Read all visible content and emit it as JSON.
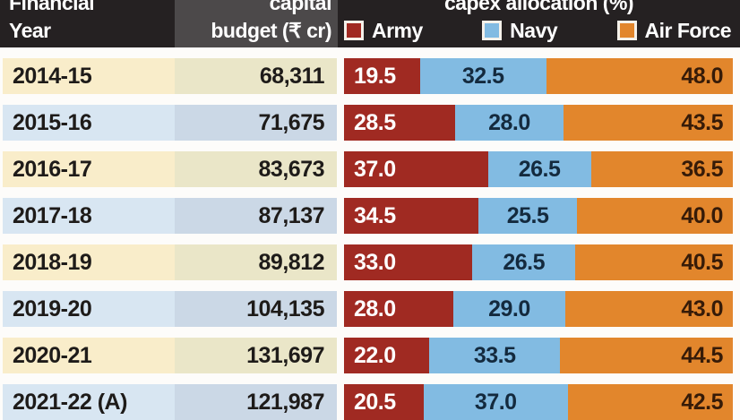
{
  "header": {
    "col_year": {
      "line1": "Financial",
      "line2": "Year"
    },
    "col_budget": {
      "line1": "capital",
      "line2": "budget (₹ cr)"
    },
    "col_capex": {
      "title": "capex allocation (%)"
    },
    "legend": [
      {
        "label": "Army",
        "color": "#a02a22"
      },
      {
        "label": "Navy",
        "color": "#82bbe2"
      },
      {
        "label": "Air Force",
        "color": "#e2862c"
      }
    ]
  },
  "rows": [
    {
      "year": "2014-15",
      "budget": "68,311",
      "army": "19.5",
      "navy": "32.5",
      "air_force": "48.0"
    },
    {
      "year": "2015-16",
      "budget": "71,675",
      "army": "28.5",
      "navy": "28.0",
      "air_force": "43.5"
    },
    {
      "year": "2016-17",
      "budget": "83,673",
      "army": "37.0",
      "navy": "26.5",
      "air_force": "36.5"
    },
    {
      "year": "2017-18",
      "budget": "87,137",
      "army": "34.5",
      "navy": "25.5",
      "air_force": "40.0"
    },
    {
      "year": "2018-19",
      "budget": "89,812",
      "army": "33.0",
      "navy": "26.5",
      "air_force": "40.5"
    },
    {
      "year": "2019-20",
      "budget": "104,135",
      "army": "28.0",
      "navy": "29.0",
      "air_force": "43.0"
    },
    {
      "year": "2020-21",
      "budget": "131,697",
      "army": "22.0",
      "navy": "33.5",
      "air_force": "44.5"
    },
    {
      "year": "2021-22 (A)",
      "budget": "121,987",
      "army": "20.5",
      "navy": "37.0",
      "air_force": "42.5"
    }
  ],
  "chart_data": {
    "type": "bar",
    "variant": "horizontal-stacked-100-percent",
    "title": "capex allocation (%)",
    "columns": [
      "Financial Year",
      "capital budget (₹ cr)",
      "capex allocation (%)"
    ],
    "categories": [
      "2014-15",
      "2015-16",
      "2016-17",
      "2017-18",
      "2018-19",
      "2019-20",
      "2020-21",
      "2021-22 (A)"
    ],
    "capital_budget_rs_cr": [
      68311,
      71675,
      83673,
      87137,
      89812,
      104135,
      131697,
      121987
    ],
    "series": [
      {
        "name": "Army",
        "color": "#a02a22",
        "values": [
          19.5,
          28.5,
          37.0,
          34.5,
          33.0,
          28.0,
          22.0,
          20.5
        ]
      },
      {
        "name": "Navy",
        "color": "#82bbe2",
        "values": [
          32.5,
          28.0,
          26.5,
          25.5,
          26.5,
          29.0,
          33.5,
          37.0
        ]
      },
      {
        "name": "Air Force",
        "color": "#e2862c",
        "values": [
          48.0,
          43.5,
          36.5,
          40.0,
          40.5,
          43.0,
          44.5,
          42.5
        ]
      }
    ],
    "xlim": [
      0,
      100
    ],
    "value_suffix": "%",
    "legend_position": "top",
    "grid": false
  }
}
